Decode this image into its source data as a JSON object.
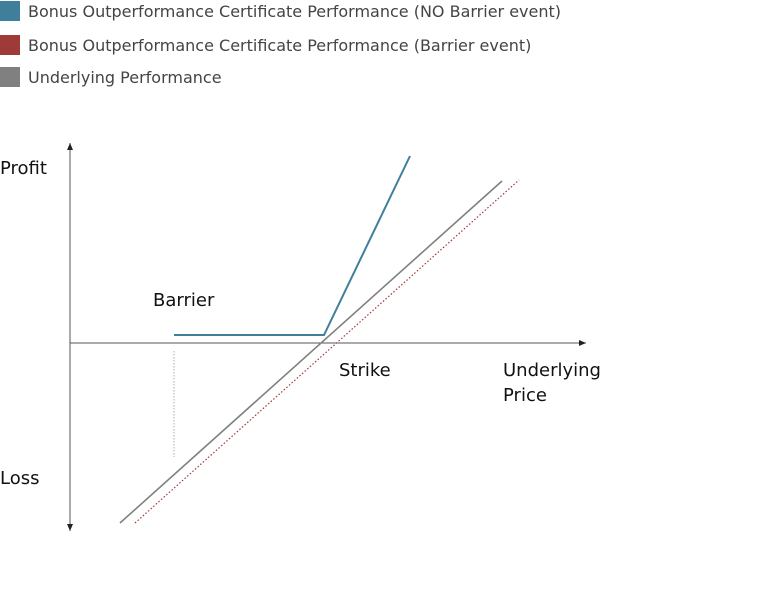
{
  "legend": [
    {
      "label": "Bonus Outperformance Certificate Performance (NO Barrier event)",
      "color": "#3f7f9c"
    },
    {
      "label": "Bonus Outperformance Certificate Performance (Barrier event)",
      "color": "#9e3b38"
    },
    {
      "label": "Underlying Performance",
      "color": "#808080"
    }
  ],
  "labels": {
    "profit": "Profit",
    "loss": "Loss",
    "barrier": "Barrier",
    "strike": "Strike",
    "x_axis_line1": "Underlying",
    "x_axis_line2": "Price"
  }
}
